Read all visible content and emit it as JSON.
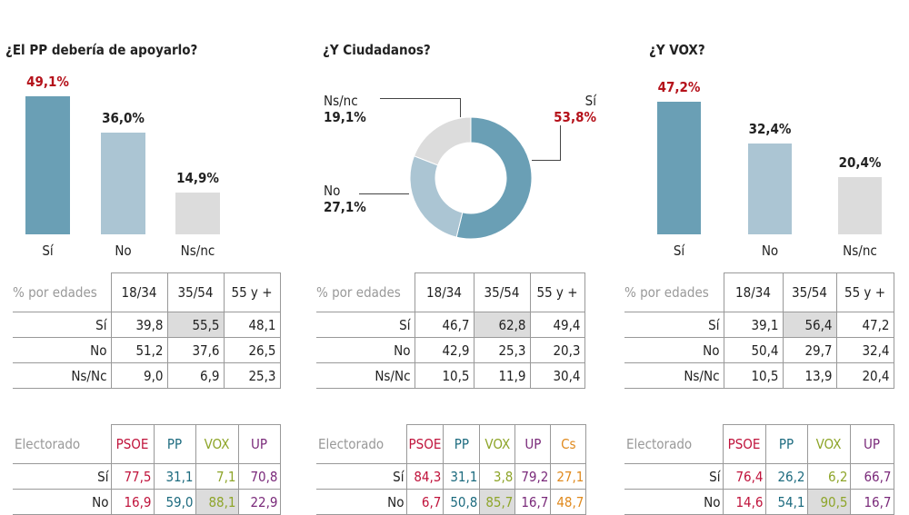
{
  "colors": {
    "si": "#6a9fb5",
    "no": "#abc5d3",
    "nsnc": "#dcdcdc",
    "highlight_pct": "#b5121b",
    "highlight_cell": "#dcdcdc",
    "parties": {
      "PSOE": "#c0143c",
      "PP": "#1d6b7f",
      "VOX": "#8ea52a",
      "UP": "#7a2a7a",
      "Cs": "#e08a1e"
    }
  },
  "chart_data": [
    {
      "type": "bar",
      "title": "¿El PP debería de apoyarlo?",
      "categories": [
        "Sí",
        "No",
        "Ns/nc"
      ],
      "values": [
        49.1,
        36.0,
        14.9
      ],
      "value_labels": [
        "49,1%",
        "36,0%",
        "14,9%"
      ],
      "ylim": [
        0,
        50
      ],
      "grid": false,
      "ages": {
        "label": "% por edades",
        "columns": [
          "18/34",
          "35/54",
          "55 y +"
        ],
        "rows": [
          {
            "label": "Sí",
            "values": [
              "39,8",
              "55,5",
              "48,1"
            ]
          },
          {
            "label": "No",
            "values": [
              "51,2",
              "37,6",
              "26,5"
            ]
          },
          {
            "label": "Ns/Nc",
            "values": [
              "9,0",
              "6,9",
              "25,3"
            ]
          }
        ],
        "highlight": [
          0,
          1
        ]
      },
      "electorate": {
        "label": "Electorado",
        "columns": [
          "PSOE",
          "PP",
          "VOX",
          "UP"
        ],
        "rows": [
          {
            "label": "Sí",
            "values": [
              "77,5",
              "31,1",
              "7,1",
              "70,8"
            ]
          },
          {
            "label": "No",
            "values": [
              "16,9",
              "59,0",
              "88,1",
              "22,9"
            ]
          }
        ],
        "highlight": [
          1,
          2
        ]
      }
    },
    {
      "type": "pie",
      "title": "¿Y Ciudadanos?",
      "categories": [
        "Sí",
        "No",
        "Ns/nc"
      ],
      "values": [
        53.8,
        27.1,
        19.1
      ],
      "value_labels": [
        "53,8%",
        "27,1%",
        "19,1%"
      ],
      "ages": {
        "label": "% por edades",
        "columns": [
          "18/34",
          "35/54",
          "55 y +"
        ],
        "rows": [
          {
            "label": "Sí",
            "values": [
              "46,7",
              "62,8",
              "49,4"
            ]
          },
          {
            "label": "No",
            "values": [
              "42,9",
              "25,3",
              "20,3"
            ]
          },
          {
            "label": "Ns/Nc",
            "values": [
              "10,5",
              "11,9",
              "30,4"
            ]
          }
        ],
        "highlight": [
          0,
          1
        ]
      },
      "electorate": {
        "label": "Electorado",
        "columns": [
          "PSOE",
          "PP",
          "VOX",
          "UP",
          "Cs"
        ],
        "rows": [
          {
            "label": "Sí",
            "values": [
              "84,3",
              "31,1",
              "3,8",
              "79,2",
              "27,1"
            ]
          },
          {
            "label": "No",
            "values": [
              "6,7",
              "50,8",
              "85,7",
              "16,7",
              "48,7"
            ]
          }
        ],
        "highlight": [
          1,
          2
        ]
      }
    },
    {
      "type": "bar",
      "title": "¿Y VOX?",
      "categories": [
        "Sí",
        "No",
        "Ns/nc"
      ],
      "values": [
        47.2,
        32.4,
        20.4
      ],
      "value_labels": [
        "47,2%",
        "32,4%",
        "20,4%"
      ],
      "ylim": [
        0,
        50
      ],
      "grid": false,
      "ages": {
        "label": "% por edades",
        "columns": [
          "18/34",
          "35/54",
          "55 y +"
        ],
        "rows": [
          {
            "label": "Sí",
            "values": [
              "39,1",
              "56,4",
              "47,2"
            ]
          },
          {
            "label": "No",
            "values": [
              "50,4",
              "29,7",
              "32,4"
            ]
          },
          {
            "label": "Ns/Nc",
            "values": [
              "10,5",
              "13,9",
              "20,4"
            ]
          }
        ],
        "highlight": [
          0,
          1
        ]
      },
      "electorate": {
        "label": "Electorado",
        "columns": [
          "PSOE",
          "PP",
          "VOX",
          "UP"
        ],
        "rows": [
          {
            "label": "Sí",
            "values": [
              "76,4",
              "26,2",
              "6,2",
              "66,7"
            ]
          },
          {
            "label": "No",
            "values": [
              "14,6",
              "54,1",
              "90,5",
              "16,7"
            ]
          }
        ],
        "highlight": [
          1,
          2
        ]
      }
    }
  ]
}
